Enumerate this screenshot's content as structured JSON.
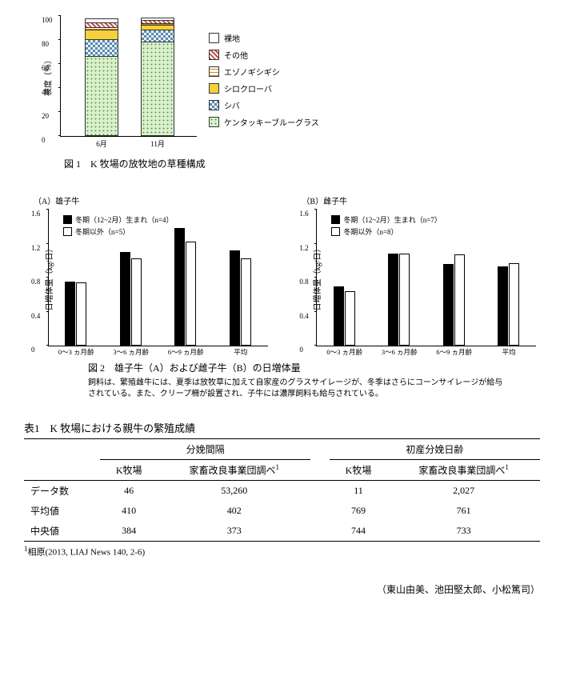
{
  "fig1": {
    "yaxis_label": "被度（％）",
    "ylim": [
      0,
      100
    ],
    "ytick_step": 20,
    "yticks": [
      0,
      20,
      40,
      60,
      80,
      100
    ],
    "categories": [
      "6月",
      "11月"
    ],
    "type": "stacked-bar",
    "series": [
      {
        "name": "裸地",
        "key": "bare",
        "pattern": "pat-bare"
      },
      {
        "name": "その他",
        "key": "other",
        "pattern": "pat-other"
      },
      {
        "name": "エゾノギシギシ",
        "key": "ezo",
        "pattern": "pat-ezo"
      },
      {
        "name": "シロクローバ",
        "key": "clover",
        "pattern": "pat-clover"
      },
      {
        "name": "シバ",
        "key": "shiba",
        "pattern": "pat-shiba"
      },
      {
        "name": "ケンタッキーブルーグラス",
        "key": "kbg",
        "pattern": "pat-kbg"
      }
    ],
    "stacks": [
      {
        "label": "6月",
        "values": {
          "kbg": 67,
          "shiba": 14,
          "clover": 8,
          "ezo": 2,
          "other": 4,
          "bare": 3
        }
      },
      {
        "label": "11月",
        "values": {
          "kbg": 79,
          "shiba": 10,
          "clover": 4,
          "ezo": 1,
          "other": 3,
          "bare": 2
        }
      }
    ],
    "caption": "図 1　K 牧場の放牧地の草種構成"
  },
  "fig2": {
    "type": "grouped-bar",
    "yaxis_label": "日増体量（kg/日）",
    "ylim": [
      0,
      1.6
    ],
    "ytick_step": 0.4,
    "yticks": [
      "0",
      "0.4",
      "0.8",
      "1.2",
      "1.6"
    ],
    "categories": [
      "0～3 ヵ月齢",
      "3～6 ヵ月齢",
      "6～9 ヵ月齢",
      "平均"
    ],
    "panels": {
      "A": {
        "title": "（A）雄子牛",
        "legend_black": "冬期（12~2月）生まれ（n=4）",
        "legend_white": "冬期以外（n=5）",
        "black": [
          0.75,
          1.1,
          1.38,
          1.12
        ],
        "white": [
          0.74,
          1.03,
          1.22,
          1.03
        ],
        "bar_colors": [
          "#000000",
          "#ffffff"
        ]
      },
      "B": {
        "title": "（B）雌子牛",
        "legend_black": "冬期（12~2月）生まれ（n=7）",
        "legend_white": "冬期以外（n=8）",
        "black": [
          0.7,
          1.08,
          0.96,
          0.93
        ],
        "white": [
          0.64,
          1.08,
          1.07,
          0.97
        ],
        "bar_colors": [
          "#000000",
          "#ffffff"
        ]
      }
    },
    "caption": "図 2　雄子牛（A）および雌子牛（B）の日増体量",
    "note": "飼料は、繁殖雌牛には、夏季は放牧草に加えて自家産のグラスサイレージが、冬季はさらにコーンサイレージが給与されている。また、クリープ柵が設置され、子牛には濃厚飼料も給与されている。"
  },
  "table1": {
    "title": "表1　K 牧場における親牛の繁殖成績",
    "group_headers": [
      "分娩間隔",
      "初産分娩日齢"
    ],
    "sub_headers": {
      "k": "K牧場",
      "ref": "家畜改良事業団調べ",
      "ref_sup": "1"
    },
    "rows": [
      {
        "label": "データ数",
        "a_k": "46",
        "a_r": "53,260",
        "b_k": "11",
        "b_r": "2,027"
      },
      {
        "label": "平均値",
        "a_k": "410",
        "a_r": "402",
        "b_k": "769",
        "b_r": "761"
      },
      {
        "label": "中央値",
        "a_k": "384",
        "a_r": "373",
        "b_k": "744",
        "b_r": "733"
      }
    ],
    "footnote_sup": "1",
    "footnote": "相原(2013, LIAJ News 140, 2-6)"
  },
  "authors": "（東山由美、池田堅太郎、小松篤司）"
}
